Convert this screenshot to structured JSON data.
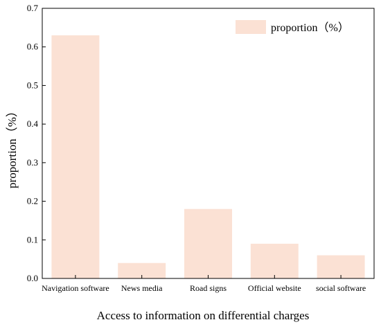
{
  "chart_data": {
    "type": "bar",
    "categories": [
      "Navigation software",
      "News media",
      "Road signs",
      "Official website",
      "social software"
    ],
    "series": [
      {
        "name": "proportion（%）",
        "values": [
          0.63,
          0.04,
          0.18,
          0.09,
          0.06
        ]
      }
    ],
    "xlabel": "Access to information on differential charges",
    "ylabel": "proportion（%）",
    "ylim": [
      0,
      0.7
    ],
    "yticks": [
      "0.0",
      "0.1",
      "0.2",
      "0.3",
      "0.4",
      "0.5",
      "0.6",
      "0.7"
    ],
    "grid": false,
    "legend_position": "top-right",
    "bar_color": "#fbe1d4",
    "axis_color": "#000000"
  }
}
